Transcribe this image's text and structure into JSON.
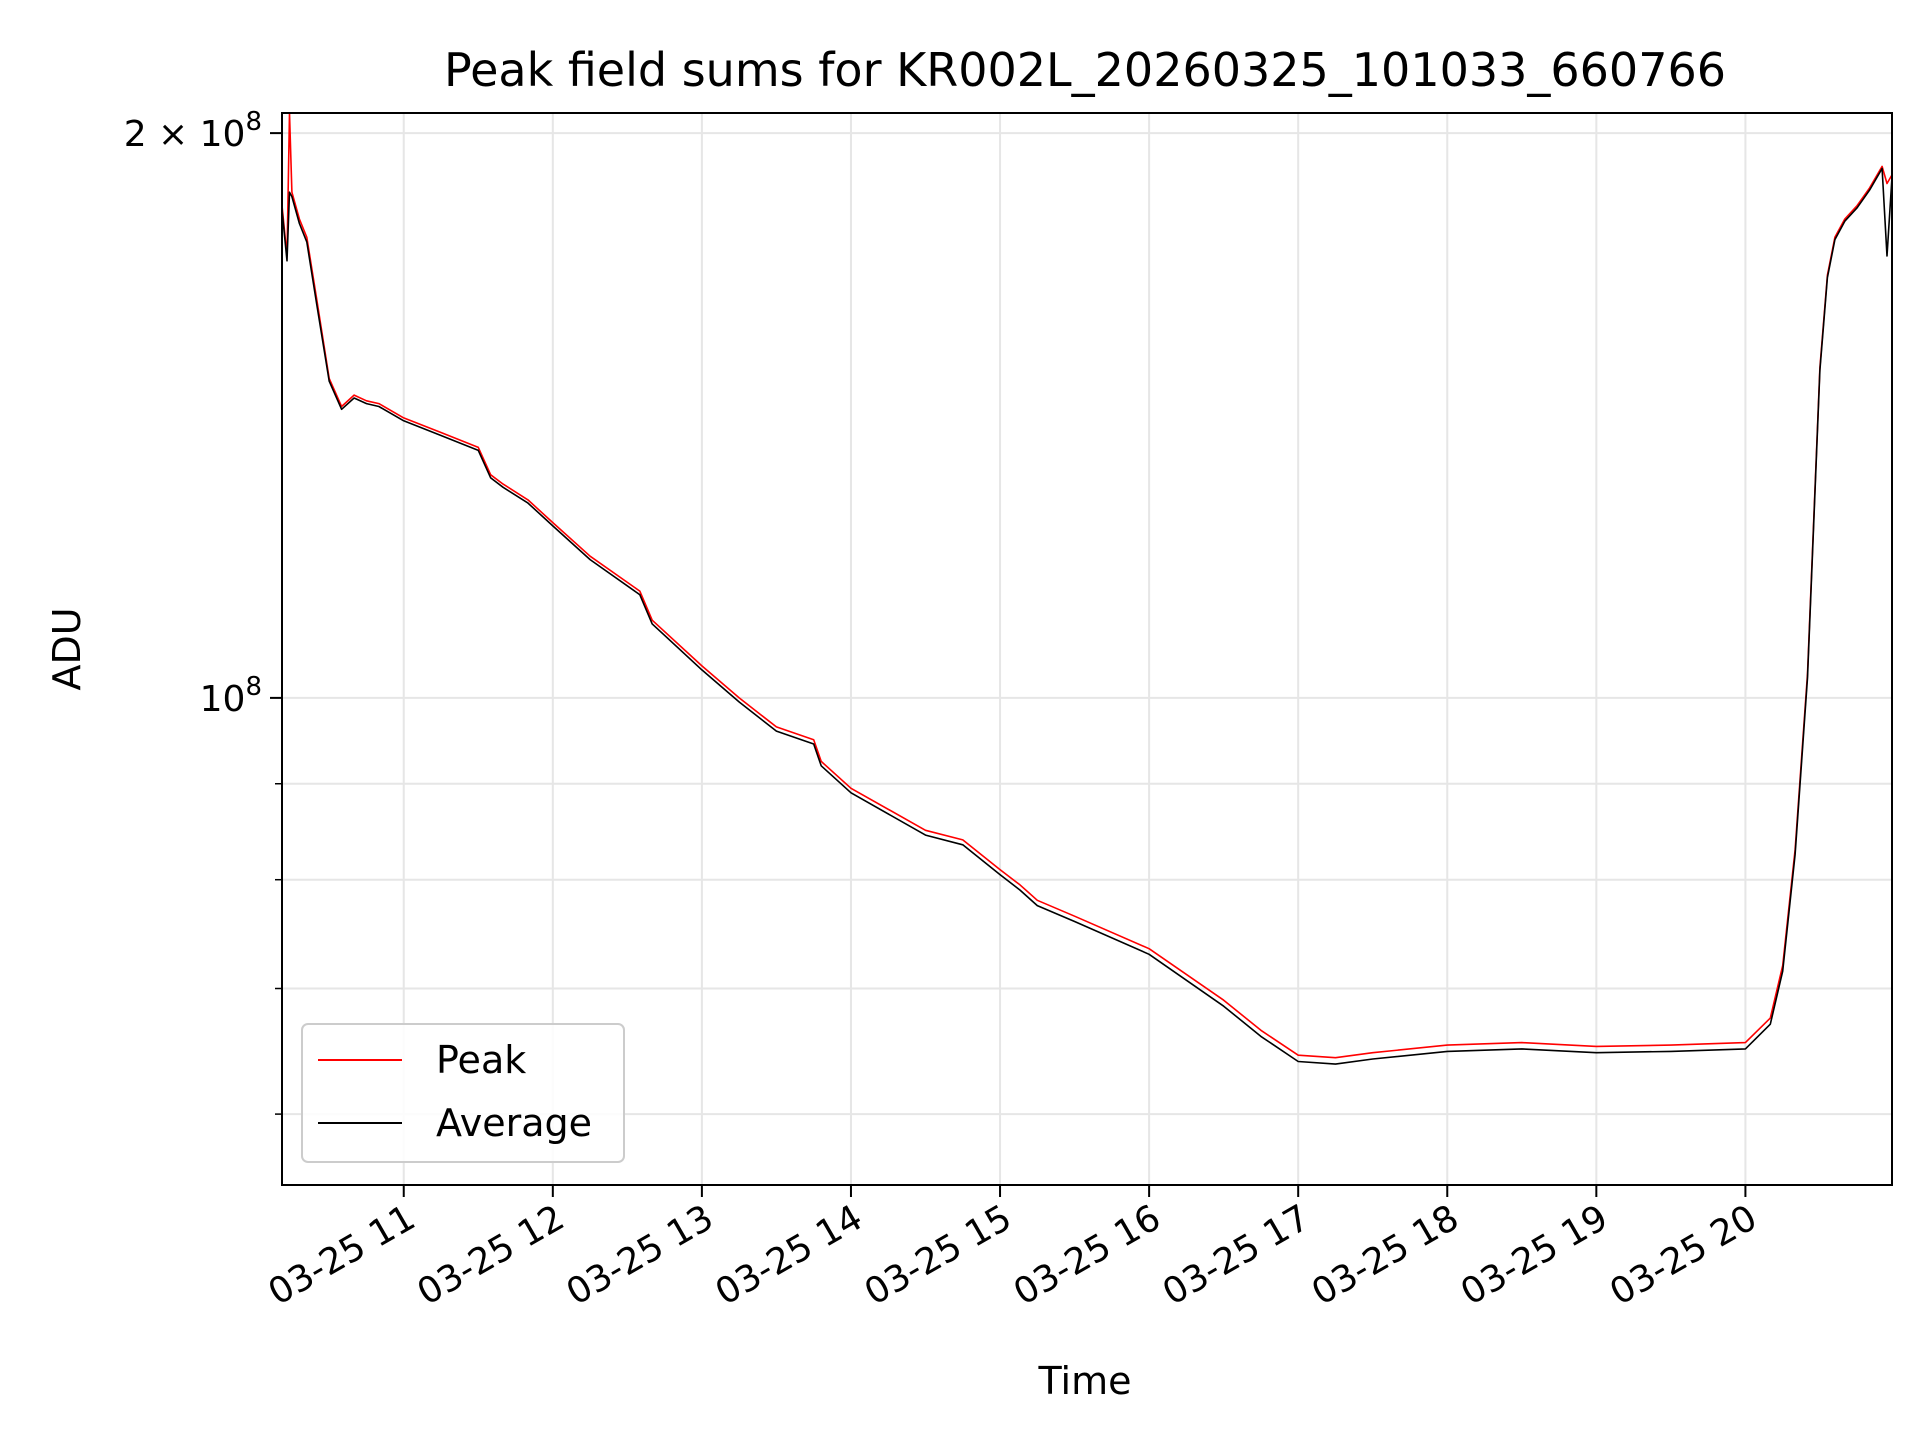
{
  "chart_data": {
    "type": "line",
    "title": "Peak field sums for KR002L_20260325_101033_660766",
    "xlabel": "Time",
    "ylabel": "ADU",
    "yscale": "log",
    "ylim": [
      55000000,
      205000000
    ],
    "xlim": [
      "2026-03-25 10:11",
      "2026-03-25 20:59"
    ],
    "grid": true,
    "legend_position": "lower-left",
    "x_ticks": [
      {
        "time": "2026-03-25 11:00",
        "label": "03-25 11"
      },
      {
        "time": "2026-03-25 12:00",
        "label": "03-25 12"
      },
      {
        "time": "2026-03-25 13:00",
        "label": "03-25 13"
      },
      {
        "time": "2026-03-25 14:00",
        "label": "03-25 14"
      },
      {
        "time": "2026-03-25 15:00",
        "label": "03-25 15"
      },
      {
        "time": "2026-03-25 16:00",
        "label": "03-25 16"
      },
      {
        "time": "2026-03-25 17:00",
        "label": "03-25 17"
      },
      {
        "time": "2026-03-25 18:00",
        "label": "03-25 18"
      },
      {
        "time": "2026-03-25 19:00",
        "label": "03-25 19"
      },
      {
        "time": "2026-03-25 20:00",
        "label": "03-25 20"
      }
    ],
    "y_ticks": [
      {
        "value": 200000000,
        "label_base": "2 × 10",
        "label_exp": "8"
      },
      {
        "value": 100000000,
        "label_base": "10",
        "label_exp": "8"
      }
    ],
    "y_minor_ticks": [
      60000000,
      70000000,
      80000000,
      90000000
    ],
    "series": [
      {
        "name": "Peak",
        "color": "#ff0000",
        "x": [
          "2026-03-25 10:11",
          "2026-03-25 10:13",
          "2026-03-25 10:14",
          "2026-03-25 10:15",
          "2026-03-25 10:18",
          "2026-03-25 10:21",
          "2026-03-25 10:25",
          "2026-03-25 10:30",
          "2026-03-25 10:35",
          "2026-03-25 10:40",
          "2026-03-25 10:45",
          "2026-03-25 10:50",
          "2026-03-25 11:00",
          "2026-03-25 11:15",
          "2026-03-25 11:30",
          "2026-03-25 11:35",
          "2026-03-25 11:40",
          "2026-03-25 11:50",
          "2026-03-25 12:00",
          "2026-03-25 12:15",
          "2026-03-25 12:35",
          "2026-03-25 12:40",
          "2026-03-25 13:00",
          "2026-03-25 13:15",
          "2026-03-25 13:30",
          "2026-03-25 13:45",
          "2026-03-25 13:48",
          "2026-03-25 14:00",
          "2026-03-25 14:30",
          "2026-03-25 14:45",
          "2026-03-25 15:00",
          "2026-03-25 15:08",
          "2026-03-25 15:15",
          "2026-03-25 15:30",
          "2026-03-25 16:00",
          "2026-03-25 16:30",
          "2026-03-25 16:45",
          "2026-03-25 17:00",
          "2026-03-25 17:15",
          "2026-03-25 17:30",
          "2026-03-25 18:00",
          "2026-03-25 18:30",
          "2026-03-25 19:00",
          "2026-03-25 19:30",
          "2026-03-25 20:00",
          "2026-03-25 20:10",
          "2026-03-25 20:15",
          "2026-03-25 20:20",
          "2026-03-25 20:25",
          "2026-03-25 20:30",
          "2026-03-25 20:33",
          "2026-03-25 20:36",
          "2026-03-25 20:40",
          "2026-03-25 20:45",
          "2026-03-25 20:50",
          "2026-03-25 20:55",
          "2026-03-25 20:57",
          "2026-03-25 20:59"
        ],
        "values": [
          183000000,
          172000000,
          205000000,
          186000000,
          180000000,
          176000000,
          163000000,
          148000000,
          143000000,
          145000000,
          144000000,
          143500000,
          141000000,
          138500000,
          136000000,
          131500000,
          130000000,
          127500000,
          124000000,
          119000000,
          114000000,
          110000000,
          104000000,
          100000000,
          96500000,
          95000000,
          92500000,
          89500000,
          85000000,
          84000000,
          81000000,
          79500000,
          78000000,
          76500000,
          73500000,
          69000000,
          66500000,
          64500000,
          64300000,
          64700000,
          65300000,
          65500000,
          65200000,
          65300000,
          65500000,
          67500000,
          72000000,
          83000000,
          103000000,
          150000000,
          168000000,
          176000000,
          180000000,
          183000000,
          187000000,
          192000000,
          188000000,
          190000000
        ]
      },
      {
        "name": "Average",
        "color": "#000000",
        "x": [
          "2026-03-25 10:11",
          "2026-03-25 10:13",
          "2026-03-25 10:14",
          "2026-03-25 10:15",
          "2026-03-25 10:18",
          "2026-03-25 10:21",
          "2026-03-25 10:25",
          "2026-03-25 10:30",
          "2026-03-25 10:35",
          "2026-03-25 10:40",
          "2026-03-25 10:45",
          "2026-03-25 10:50",
          "2026-03-25 11:00",
          "2026-03-25 11:15",
          "2026-03-25 11:30",
          "2026-03-25 11:35",
          "2026-03-25 11:40",
          "2026-03-25 11:50",
          "2026-03-25 12:00",
          "2026-03-25 12:15",
          "2026-03-25 12:35",
          "2026-03-25 12:40",
          "2026-03-25 13:00",
          "2026-03-25 13:15",
          "2026-03-25 13:30",
          "2026-03-25 13:45",
          "2026-03-25 13:48",
          "2026-03-25 14:00",
          "2026-03-25 14:30",
          "2026-03-25 14:45",
          "2026-03-25 15:00",
          "2026-03-25 15:08",
          "2026-03-25 15:15",
          "2026-03-25 15:30",
          "2026-03-25 16:00",
          "2026-03-25 16:30",
          "2026-03-25 16:45",
          "2026-03-25 17:00",
          "2026-03-25 17:15",
          "2026-03-25 17:30",
          "2026-03-25 18:00",
          "2026-03-25 18:30",
          "2026-03-25 19:00",
          "2026-03-25 19:30",
          "2026-03-25 20:00",
          "2026-03-25 20:10",
          "2026-03-25 20:15",
          "2026-03-25 20:20",
          "2026-03-25 20:25",
          "2026-03-25 20:30",
          "2026-03-25 20:33",
          "2026-03-25 20:36",
          "2026-03-25 20:40",
          "2026-03-25 20:45",
          "2026-03-25 20:50",
          "2026-03-25 20:55",
          "2026-03-25 20:57",
          "2026-03-25 20:59"
        ],
        "values": [
          182000000,
          171000000,
          186000000,
          185000000,
          179000000,
          175000000,
          162000000,
          147500000,
          142500000,
          144500000,
          143500000,
          143000000,
          140500000,
          138000000,
          135500000,
          131000000,
          129500000,
          127000000,
          123500000,
          118500000,
          113500000,
          109500000,
          103500000,
          99500000,
          96000000,
          94500000,
          92000000,
          89000000,
          84500000,
          83500000,
          80500000,
          79000000,
          77500000,
          76000000,
          73000000,
          68500000,
          66000000,
          64000000,
          63800000,
          64200000,
          64800000,
          65000000,
          64700000,
          64800000,
          65000000,
          67000000,
          71500000,
          82500000,
          102500000,
          149500000,
          167500000,
          175500000,
          179500000,
          182500000,
          186500000,
          191500000,
          172000000,
          189500000
        ]
      }
    ]
  }
}
